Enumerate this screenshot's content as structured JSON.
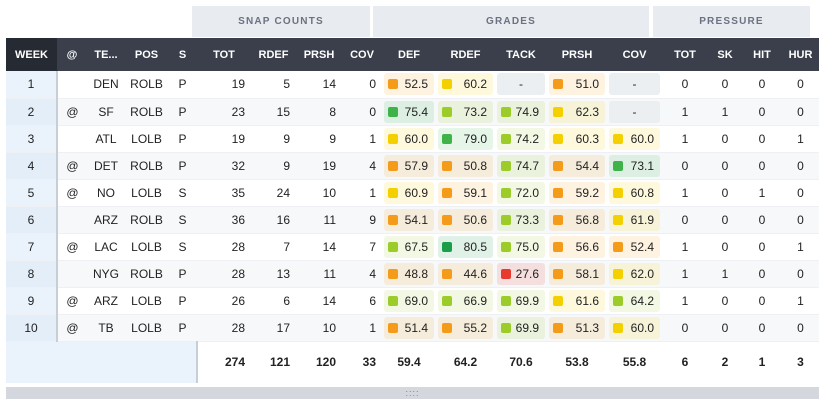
{
  "groups": {
    "snap": "SNAP COUNTS",
    "grades": "GRADES",
    "pressure": "PRESSURE"
  },
  "columns": [
    "WEEK",
    "@",
    "TE...",
    "POS",
    "S",
    "TOT",
    "RDEF",
    "PRSH",
    "COV",
    "DEF",
    "RDEF",
    "TACK",
    "PRSH",
    "COV",
    "TOT",
    "SK",
    "HIT",
    "HUR"
  ],
  "grade_colors": {
    "orange": "#f59b1a",
    "yellow": "#f5d000",
    "lime": "#9ccc2a",
    "green": "#3fb34a",
    "dkgreen": "#1a9e4a",
    "red": "#e63b2e"
  },
  "rows": [
    {
      "week": "1",
      "at": "",
      "team": "DEN",
      "pos": "ROLB",
      "s": "P",
      "tot": "19",
      "rdef": "5",
      "prsh": "14",
      "cov": "0",
      "grades": [
        "52.5",
        "60.2",
        "-",
        "51.0",
        "-"
      ],
      "gcolors": [
        "orange",
        "yellow",
        "",
        "orange",
        ""
      ],
      "ptot": "0",
      "sk": "0",
      "hit": "0",
      "hur": "0"
    },
    {
      "week": "2",
      "at": "@",
      "team": "SF",
      "pos": "ROLB",
      "s": "P",
      "tot": "23",
      "rdef": "15",
      "prsh": "8",
      "cov": "0",
      "grades": [
        "75.4",
        "73.2",
        "74.9",
        "62.3",
        "-"
      ],
      "gcolors": [
        "green",
        "lime",
        "lime",
        "yellow",
        ""
      ],
      "ptot": "1",
      "sk": "1",
      "hit": "0",
      "hur": "0"
    },
    {
      "week": "3",
      "at": "",
      "team": "ATL",
      "pos": "LOLB",
      "s": "P",
      "tot": "19",
      "rdef": "9",
      "prsh": "9",
      "cov": "1",
      "grades": [
        "60.0",
        "79.0",
        "74.2",
        "60.3",
        "60.0"
      ],
      "gcolors": [
        "yellow",
        "green",
        "lime",
        "yellow",
        "yellow"
      ],
      "ptot": "1",
      "sk": "0",
      "hit": "0",
      "hur": "1"
    },
    {
      "week": "4",
      "at": "@",
      "team": "DET",
      "pos": "ROLB",
      "s": "P",
      "tot": "32",
      "rdef": "9",
      "prsh": "19",
      "cov": "4",
      "grades": [
        "57.9",
        "50.8",
        "74.7",
        "54.4",
        "73.1"
      ],
      "gcolors": [
        "orange",
        "orange",
        "lime",
        "orange",
        "green"
      ],
      "ptot": "0",
      "sk": "0",
      "hit": "0",
      "hur": "0"
    },
    {
      "week": "5",
      "at": "@",
      "team": "NO",
      "pos": "LOLB",
      "s": "S",
      "tot": "35",
      "rdef": "24",
      "prsh": "10",
      "cov": "1",
      "grades": [
        "60.9",
        "59.1",
        "72.0",
        "59.2",
        "60.8"
      ],
      "gcolors": [
        "yellow",
        "orange",
        "lime",
        "orange",
        "yellow"
      ],
      "ptot": "1",
      "sk": "0",
      "hit": "1",
      "hur": "0"
    },
    {
      "week": "6",
      "at": "",
      "team": "ARZ",
      "pos": "ROLB",
      "s": "S",
      "tot": "36",
      "rdef": "16",
      "prsh": "11",
      "cov": "9",
      "grades": [
        "54.1",
        "50.6",
        "73.3",
        "56.8",
        "61.9"
      ],
      "gcolors": [
        "orange",
        "orange",
        "lime",
        "orange",
        "yellow"
      ],
      "ptot": "0",
      "sk": "0",
      "hit": "0",
      "hur": "0"
    },
    {
      "week": "7",
      "at": "@",
      "team": "LAC",
      "pos": "LOLB",
      "s": "S",
      "tot": "28",
      "rdef": "7",
      "prsh": "14",
      "cov": "7",
      "grades": [
        "67.5",
        "80.5",
        "75.0",
        "56.6",
        "52.4"
      ],
      "gcolors": [
        "lime",
        "dkgreen",
        "lime",
        "orange",
        "orange"
      ],
      "ptot": "1",
      "sk": "0",
      "hit": "0",
      "hur": "1"
    },
    {
      "week": "8",
      "at": "",
      "team": "NYG",
      "pos": "ROLB",
      "s": "P",
      "tot": "28",
      "rdef": "13",
      "prsh": "11",
      "cov": "4",
      "grades": [
        "48.8",
        "44.6",
        "27.6",
        "58.1",
        "62.0"
      ],
      "gcolors": [
        "orange",
        "orange",
        "red",
        "orange",
        "yellow"
      ],
      "ptot": "1",
      "sk": "1",
      "hit": "0",
      "hur": "0"
    },
    {
      "week": "9",
      "at": "@",
      "team": "ARZ",
      "pos": "LOLB",
      "s": "P",
      "tot": "26",
      "rdef": "6",
      "prsh": "14",
      "cov": "6",
      "grades": [
        "69.0",
        "66.9",
        "69.9",
        "61.6",
        "64.2"
      ],
      "gcolors": [
        "lime",
        "lime",
        "lime",
        "yellow",
        "lime"
      ],
      "ptot": "1",
      "sk": "0",
      "hit": "0",
      "hur": "1"
    },
    {
      "week": "10",
      "at": "@",
      "team": "TB",
      "pos": "LOLB",
      "s": "P",
      "tot": "28",
      "rdef": "17",
      "prsh": "10",
      "cov": "1",
      "grades": [
        "51.4",
        "55.2",
        "69.9",
        "51.3",
        "60.0"
      ],
      "gcolors": [
        "orange",
        "orange",
        "lime",
        "orange",
        "yellow"
      ],
      "ptot": "0",
      "sk": "0",
      "hit": "0",
      "hur": "0"
    }
  ],
  "totals": {
    "tot": "274",
    "rdef": "121",
    "prsh": "120",
    "cov": "33",
    "def": "59.4",
    "grdef": "64.2",
    "tack": "70.6",
    "gprsh": "53.8",
    "gcov": "55.8",
    "ptot": "6",
    "sk": "2",
    "hit": "1",
    "hur": "3"
  },
  "resize_handle": "::::"
}
